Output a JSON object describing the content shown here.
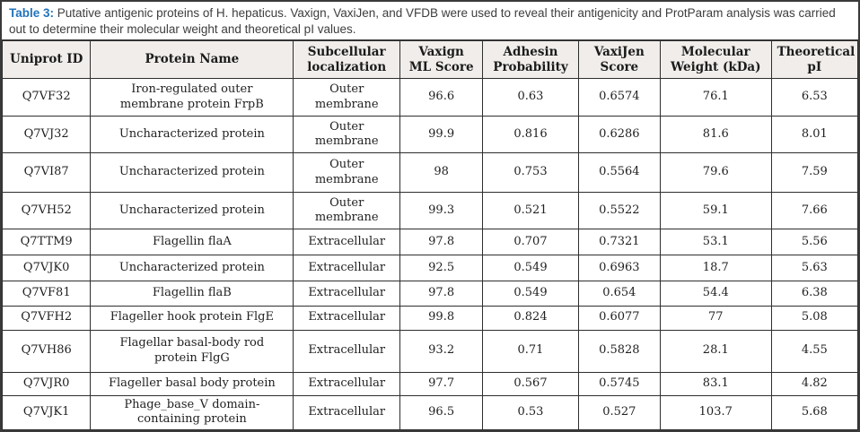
{
  "caption": {
    "label": "Table 3:",
    "text": " Putative antigenic proteins of H. hepaticus. Vaxign, VaxiJen, and VFDB were used to reveal their antigenicity and ProtParam analysis was carried out to determine their molecular weight and theoretical pI values."
  },
  "colors": {
    "caption_label_blue": "#2173bb",
    "header_background": "#f0edea",
    "grid_line": "#2e2e2e",
    "body_text": "#1f1f1f",
    "caption_text": "#3d3d3d"
  },
  "table": {
    "columns": [
      "Uniprot ID",
      "Protein Name",
      "Subcellular localization",
      "Vaxign ML Score",
      "Adhesin Probability",
      "VaxiJen Score",
      "Molecular Weight (kDa)",
      "Theoretical pI"
    ],
    "rows": [
      [
        "Q7VF32",
        "Iron-regulated outer membrane protein FrpB",
        "Outer membrane",
        "96.6",
        "0.63",
        "0.6574",
        "76.1",
        "6.53"
      ],
      [
        "Q7VJ32",
        "Uncharacterized protein",
        "Outer membrane",
        "99.9",
        "0.816",
        "0.6286",
        "81.6",
        "8.01"
      ],
      [
        "Q7VI87",
        "Uncharacterized protein",
        "Outer membrane",
        "98",
        "0.753",
        "0.5564",
        "79.6",
        "7.59"
      ],
      [
        "Q7VH52",
        "Uncharacterized protein",
        "Outer membrane",
        "99.3",
        "0.521",
        "0.5522",
        "59.1",
        "7.66"
      ],
      [
        "Q7TTM9",
        "Flagellin flaA",
        "Extracellular",
        "97.8",
        "0.707",
        "0.7321",
        "53.1",
        "5.56"
      ],
      [
        "Q7VJK0",
        "Uncharacterized protein",
        "Extracellular",
        "92.5",
        "0.549",
        "0.6963",
        "18.7",
        "5.63"
      ],
      [
        "Q7VF81",
        "Flagellin flaB",
        "Extracellular",
        "97.8",
        "0.549",
        "0.654",
        "54.4",
        "6.38"
      ],
      [
        "Q7VFH2",
        "Flageller hook protein FlgE",
        "Extracellular",
        "99.8",
        "0.824",
        "0.6077",
        "77",
        "5.08"
      ],
      [
        "Q7VH86",
        "Flagellar basal-body rod protein FlgG",
        "Extracellular",
        "93.2",
        "0.71",
        "0.5828",
        "28.1",
        "4.55"
      ],
      [
        "Q7VJR0",
        "Flageller basal body protein",
        "Extracellular",
        "97.7",
        "0.567",
        "0.5745",
        "83.1",
        "4.82"
      ],
      [
        "Q7VJK1",
        "Phage_base_V domain-containing protein",
        "Extracellular",
        "96.5",
        "0.53",
        "0.527",
        "103.7",
        "5.68"
      ]
    ]
  }
}
